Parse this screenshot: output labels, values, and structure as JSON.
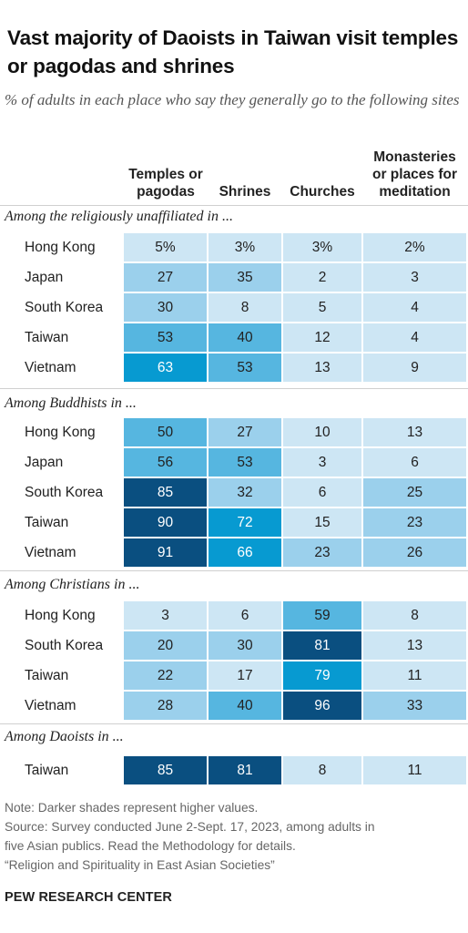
{
  "title": "Vast majority of Daoists in Taiwan visit temples or pagodas and shrines",
  "subtitle": "% of adults in each place who say they generally go to the following sites",
  "chart_data": {
    "type": "heatmap",
    "title": "Vast majority of Daoists in Taiwan visit temples or pagodas and shrines",
    "subtitle": "% of adults in each place who say they generally go to the following sites",
    "columns": [
      "Temples or pagodas",
      "Shrines",
      "Churches",
      "Monasteries or places for meditation"
    ],
    "groups": [
      {
        "label": "Among the religiously unaffiliated in ...",
        "rows": [
          {
            "place": "Hong Kong",
            "values": [
              5,
              3,
              3,
              2
            ],
            "labels": [
              "5%",
              "3%",
              "3%",
              "2%"
            ]
          },
          {
            "place": "Japan",
            "values": [
              27,
              35,
              2,
              3
            ],
            "labels": [
              "27",
              "35",
              "2",
              "3"
            ]
          },
          {
            "place": "South Korea",
            "values": [
              30,
              8,
              5,
              4
            ],
            "labels": [
              "30",
              "8",
              "5",
              "4"
            ]
          },
          {
            "place": "Taiwan",
            "values": [
              53,
              40,
              12,
              4
            ],
            "labels": [
              "53",
              "40",
              "12",
              "4"
            ]
          },
          {
            "place": "Vietnam",
            "values": [
              63,
              53,
              13,
              9
            ],
            "labels": [
              "63",
              "53",
              "13",
              "9"
            ]
          }
        ]
      },
      {
        "label": "Among Buddhists in ...",
        "rows": [
          {
            "place": "Hong Kong",
            "values": [
              50,
              27,
              10,
              13
            ],
            "labels": [
              "50",
              "27",
              "10",
              "13"
            ]
          },
          {
            "place": "Japan",
            "values": [
              56,
              53,
              3,
              6
            ],
            "labels": [
              "56",
              "53",
              "3",
              "6"
            ]
          },
          {
            "place": "South Korea",
            "values": [
              85,
              32,
              6,
              25
            ],
            "labels": [
              "85",
              "32",
              "6",
              "25"
            ]
          },
          {
            "place": "Taiwan",
            "values": [
              90,
              72,
              15,
              23
            ],
            "labels": [
              "90",
              "72",
              "15",
              "23"
            ]
          },
          {
            "place": "Vietnam",
            "values": [
              91,
              66,
              23,
              26
            ],
            "labels": [
              "91",
              "66",
              "23",
              "26"
            ]
          }
        ]
      },
      {
        "label": "Among Christians in ...",
        "rows": [
          {
            "place": "Hong Kong",
            "values": [
              3,
              6,
              59,
              8
            ],
            "labels": [
              "3",
              "6",
              "59",
              "8"
            ]
          },
          {
            "place": "South Korea",
            "values": [
              20,
              30,
              81,
              13
            ],
            "labels": [
              "20",
              "30",
              "81",
              "13"
            ]
          },
          {
            "place": "Taiwan",
            "values": [
              22,
              17,
              79,
              11
            ],
            "labels": [
              "22",
              "17",
              "79",
              "11"
            ]
          },
          {
            "place": "Vietnam",
            "values": [
              28,
              40,
              96,
              33
            ],
            "labels": [
              "28",
              "40",
              "96",
              "33"
            ]
          }
        ]
      },
      {
        "label": "Among Daoists in ...",
        "rows": [
          {
            "place": "Taiwan",
            "values": [
              85,
              81,
              8,
              11
            ],
            "labels": [
              "85",
              "81",
              "8",
              "11"
            ]
          }
        ]
      }
    ],
    "color_scale": [
      "#cde6f4",
      "#9bd0ec",
      "#56b6e0",
      "#079ad1",
      "#0a4f80"
    ]
  },
  "notes": [
    "Note: Darker shades represent higher values.",
    "Source: Survey conducted June 2-Sept. 17, 2023, among adults in",
    "five Asian publics. Read the Methodology for details.",
    "“Religion and Spirituality in East Asian Societies”"
  ],
  "brand": "PEW RESEARCH CENTER"
}
